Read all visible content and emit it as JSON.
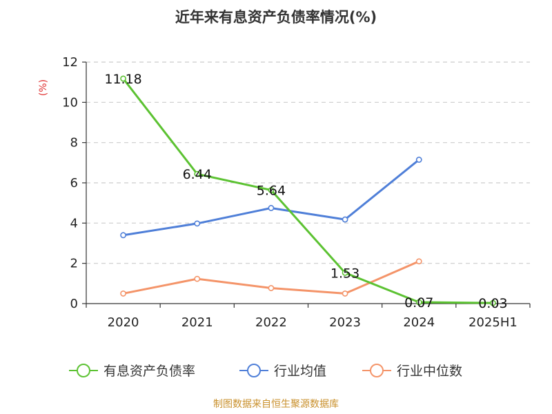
{
  "chart_data": {
    "type": "line",
    "title": "近年来有息资产负债率情况(%)",
    "ylabel": "(%)",
    "categories": [
      "2020",
      "2021",
      "2022",
      "2023",
      "2024",
      "2025H1"
    ],
    "y_ticks": [
      "0",
      "2",
      "4",
      "6",
      "8",
      "10",
      "12"
    ],
    "ylim": [
      0,
      12
    ],
    "grid": true,
    "legend_position": "bottom",
    "series": [
      {
        "name": "有息资产负债率",
        "color": "#5cc232",
        "values": [
          11.18,
          6.44,
          5.64,
          1.53,
          0.07,
          0.03
        ],
        "labels": [
          "11.18",
          "6.44",
          "5.64",
          "1.53",
          "0.07",
          "0.03"
        ]
      },
      {
        "name": "行业均值",
        "color": "#4f7fd8",
        "values": [
          3.4,
          3.98,
          4.75,
          4.18,
          7.15,
          null
        ]
      },
      {
        "name": "行业中位数",
        "color": "#f49469",
        "values": [
          0.5,
          1.23,
          0.77,
          0.5,
          2.1,
          null
        ]
      }
    ],
    "source": "制图数据来自恒生聚源数据库",
    "ylabel_color": "#e03030",
    "source_color": "#c9902c"
  }
}
